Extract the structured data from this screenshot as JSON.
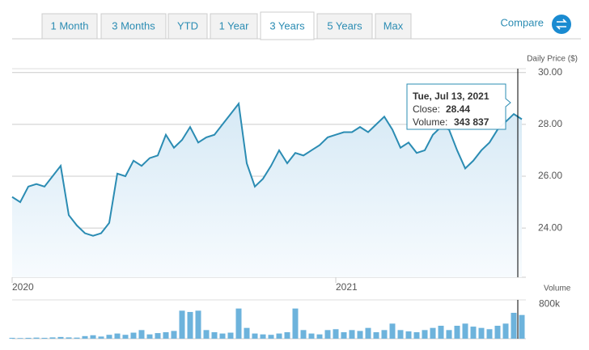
{
  "ui": {
    "tabs": [
      "1 Month",
      "3 Months",
      "YTD",
      "1 Year",
      "3 Years",
      "5 Years",
      "Max"
    ],
    "active_tab": 4,
    "compare": "Compare"
  },
  "chart_data": [
    {
      "type": "area",
      "ylabel": "Daily Price ($)",
      "color": "#2b8cb3",
      "categories": [
        "2020",
        null,
        null,
        null,
        null,
        null,
        null,
        null,
        null,
        null,
        null,
        null,
        null,
        null,
        null,
        null,
        null,
        null,
        null,
        null,
        null,
        null,
        null,
        null,
        null,
        null,
        null,
        null,
        null,
        null,
        null,
        null,
        null,
        null,
        null,
        null,
        null,
        null,
        null,
        null,
        "2021",
        null,
        null,
        null,
        null,
        null,
        null,
        null,
        null,
        null,
        null,
        null,
        null,
        null,
        null,
        null,
        null,
        null,
        null,
        null,
        null,
        null,
        null,
        null
      ],
      "values": [
        25.2,
        25.0,
        25.6,
        25.7,
        25.6,
        26.0,
        26.4,
        24.5,
        24.1,
        23.8,
        23.7,
        23.8,
        24.2,
        26.1,
        26.0,
        26.6,
        26.4,
        26.7,
        26.8,
        27.6,
        27.1,
        27.4,
        27.9,
        27.3,
        27.5,
        27.6,
        28.0,
        28.4,
        28.8,
        26.5,
        25.6,
        25.9,
        26.4,
        27.0,
        26.5,
        26.9,
        26.8,
        27.0,
        27.2,
        27.5,
        27.6,
        27.7,
        27.7,
        27.9,
        27.7,
        28.0,
        28.3,
        27.8,
        27.1,
        27.3,
        26.9,
        27.0,
        27.6,
        27.9,
        27.8,
        27.0,
        26.3,
        26.6,
        27.0,
        27.3,
        27.8,
        28.1,
        28.4,
        28.2
      ],
      "ylim": [
        22.1,
        30.15
      ],
      "yticks": [
        {
          "value": 24,
          "label": "24.00"
        },
        {
          "value": 26,
          "label": "26.00"
        },
        {
          "value": 28,
          "label": "28.00"
        },
        {
          "value": 30,
          "label": "30.00"
        }
      ],
      "grid": true,
      "tooltip": {
        "date": "Tue, Jul 13, 2021",
        "close_label": "Close:",
        "close": "28.44",
        "volume_label": "Volume:",
        "volume": "343 837"
      }
    },
    {
      "type": "bar",
      "title": "Volume",
      "color": "#6db3dc",
      "values": [
        20000,
        15000,
        20000,
        25000,
        20000,
        30000,
        40000,
        30000,
        25000,
        60000,
        80000,
        50000,
        90000,
        120000,
        90000,
        140000,
        200000,
        100000,
        130000,
        150000,
        180000,
        650000,
        620000,
        650000,
        200000,
        150000,
        120000,
        140000,
        700000,
        250000,
        120000,
        100000,
        90000,
        120000,
        150000,
        700000,
        200000,
        120000,
        100000,
        200000,
        220000,
        150000,
        200000,
        180000,
        250000,
        150000,
        200000,
        350000,
        200000,
        170000,
        150000,
        200000,
        250000,
        300000,
        200000,
        300000,
        350000,
        280000,
        250000,
        220000,
        300000,
        350000,
        600000,
        550000
      ],
      "ylim": [
        0,
        900000
      ],
      "yticks": [
        {
          "value": 800000,
          "label": "800k"
        }
      ]
    }
  ]
}
